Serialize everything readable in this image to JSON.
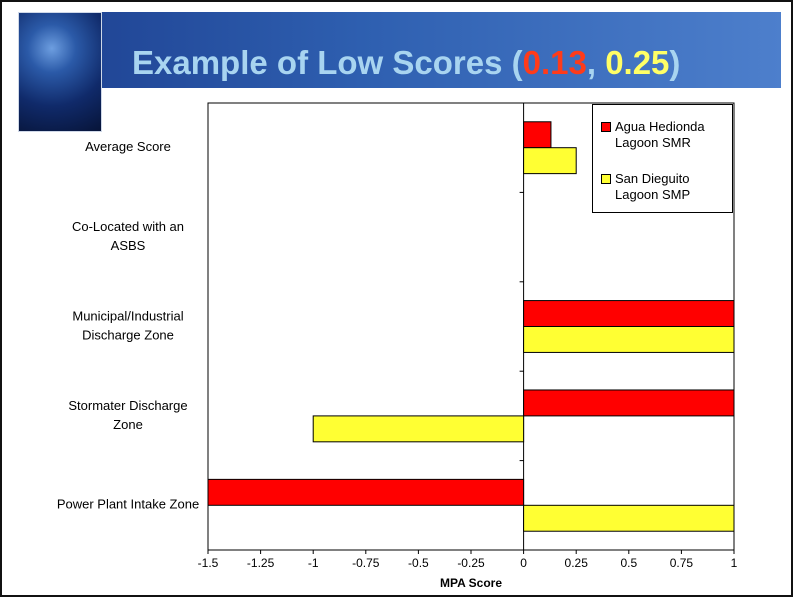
{
  "chart_data": {
    "type": "hbar",
    "title": [
      "Example of Low Scores (",
      "0.13",
      ", ",
      "0.25",
      ")"
    ],
    "categories": [
      [
        "Average Score"
      ],
      [
        "Co-Located with an",
        "ASBS"
      ],
      [
        "Municipal/Industrial",
        "Discharge Zone"
      ],
      [
        "Stormater Discharge",
        "Zone"
      ],
      [
        "Power Plant Intake Zone"
      ]
    ],
    "series": [
      {
        "name": "Agua Hedionda Lagoon SMR",
        "color": "#ff0000",
        "values": [
          0.13,
          0,
          1,
          1,
          -1.5
        ]
      },
      {
        "name": "San Dieguito Lagoon SMP",
        "color": "#ffff33",
        "values": [
          0.25,
          0,
          1,
          -1,
          1
        ]
      }
    ],
    "xlim": [
      -1.5,
      1
    ],
    "xticks": [
      -1.5,
      -1.25,
      -1,
      -0.75,
      -0.5,
      -0.25,
      0,
      0.25,
      0.5,
      0.75,
      1
    ],
    "xlabel": "MPA Score",
    "legend": "top-right"
  }
}
